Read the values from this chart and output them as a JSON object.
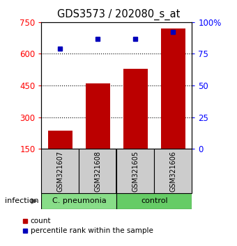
{
  "title": "GDS3573 / 202080_s_at",
  "samples": [
    "GSM321607",
    "GSM321608",
    "GSM321605",
    "GSM321606"
  ],
  "counts": [
    235,
    460,
    530,
    720
  ],
  "percentiles": [
    79,
    87,
    87,
    92
  ],
  "groups": [
    {
      "label": "C. pneumonia",
      "indices": [
        0,
        1
      ],
      "color": "#88dd88"
    },
    {
      "label": "control",
      "indices": [
        2,
        3
      ],
      "color": "#66cc66"
    }
  ],
  "factor_label": "infection",
  "left_yticks": [
    150,
    300,
    450,
    600,
    750
  ],
  "right_yticks": [
    0,
    25,
    50,
    75,
    100
  ],
  "right_yticklabels": [
    "0",
    "25",
    "50",
    "75",
    "100%"
  ],
  "ymin": 150,
  "ymax": 750,
  "bar_color": "#bb0000",
  "dot_color": "#0000bb",
  "bar_width": 0.65,
  "background_color": "#ffffff",
  "label_count": "count",
  "label_percentile": "percentile rank within the sample",
  "grid_lines": [
    300,
    450,
    600
  ]
}
